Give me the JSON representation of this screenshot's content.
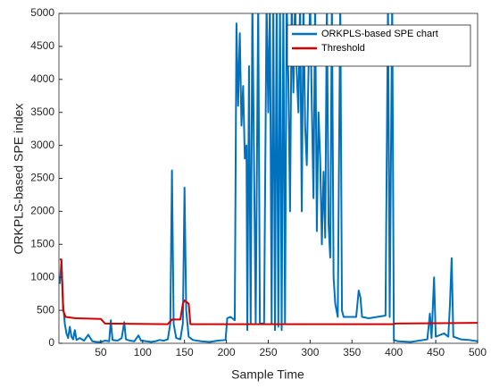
{
  "chart_data": {
    "type": "line",
    "xlabel": "Sample Time",
    "ylabel": "ORKPLS-based SPE index",
    "xlim": [
      0,
      500
    ],
    "xticks": [
      50,
      100,
      150,
      200,
      250,
      300,
      350,
      400,
      450,
      500
    ],
    "ylim": [
      0,
      5000
    ],
    "yticks": [
      0,
      500,
      1000,
      1500,
      2000,
      2500,
      3000,
      3500,
      4000,
      4500,
      5000
    ],
    "legend": "northeast",
    "series": [
      {
        "name": "ORKPLS-based SPE chart",
        "color": "#0072bd",
        "x": [
          1,
          3,
          5,
          7,
          9,
          11,
          13,
          15,
          17,
          19,
          21,
          25,
          30,
          35,
          40,
          45,
          50,
          55,
          60,
          62,
          64,
          70,
          75,
          78,
          80,
          85,
          90,
          95,
          98,
          105,
          110,
          115,
          120,
          125,
          130,
          133,
          135,
          137,
          140,
          145,
          148,
          150,
          152,
          155,
          160,
          170,
          180,
          190,
          199,
          201,
          205,
          210,
          212,
          214,
          216,
          218,
          220,
          222,
          224,
          225,
          227,
          229,
          231,
          235,
          238,
          240,
          245,
          248,
          250,
          252,
          254,
          256,
          258,
          260,
          262,
          264,
          266,
          268,
          270,
          272,
          274,
          276,
          278,
          280,
          282,
          284,
          286,
          288,
          290,
          292,
          294,
          296,
          298,
          300,
          302,
          304,
          306,
          308,
          310,
          312,
          314,
          316,
          318,
          320,
          322,
          324,
          326,
          328,
          330,
          333,
          336,
          338,
          340,
          345,
          350,
          355,
          358,
          360,
          362,
          370,
          380,
          390,
          393,
          395,
          398,
          400,
          405,
          420,
          440,
          443,
          445,
          448,
          450,
          460,
          465,
          467,
          469,
          471,
          480,
          490,
          500
        ],
        "values": [
          900,
          1250,
          600,
          300,
          150,
          80,
          250,
          100,
          60,
          200,
          50,
          80,
          40,
          130,
          30,
          20,
          20,
          40,
          30,
          350,
          50,
          40,
          80,
          320,
          60,
          40,
          30,
          120,
          40,
          30,
          20,
          30,
          50,
          40,
          60,
          300,
          2620,
          300,
          80,
          60,
          300,
          2360,
          500,
          100,
          50,
          30,
          20,
          40,
          50,
          380,
          400,
          350,
          4850,
          3600,
          4700,
          3300,
          3900,
          2800,
          3000,
          200,
          4200,
          300,
          5200,
          300,
          5200,
          300,
          300,
          5200,
          3500,
          5200,
          300,
          5200,
          200,
          5200,
          250,
          5200,
          200,
          5200,
          300,
          5200,
          4000,
          2000,
          5200,
          3800,
          5200,
          4100,
          3500,
          5200,
          2000,
          5200,
          3300,
          2700,
          4100,
          5200,
          3600,
          2200,
          5200,
          1700,
          3500,
          2800,
          1500,
          2600,
          1600,
          5200,
          1800,
          1300,
          5200,
          1000,
          600,
          400,
          5200,
          500,
          400,
          400,
          400,
          400,
          800,
          700,
          400,
          380,
          400,
          420,
          5200,
          400,
          5200,
          50,
          30,
          20,
          60,
          450,
          80,
          1000,
          100,
          150,
          100,
          600,
          1290,
          100,
          60,
          50,
          30
        ]
      },
      {
        "name": "Threshold",
        "color": "#d40000",
        "x": [
          1,
          3,
          5,
          8,
          20,
          50,
          55,
          130,
          135,
          145,
          148,
          150,
          155,
          157,
          200,
          400,
          402,
          500
        ],
        "values": [
          1270,
          1270,
          500,
          400,
          380,
          370,
          300,
          290,
          360,
          360,
          600,
          650,
          600,
          290,
          290,
          290,
          300,
          310
        ]
      }
    ]
  }
}
